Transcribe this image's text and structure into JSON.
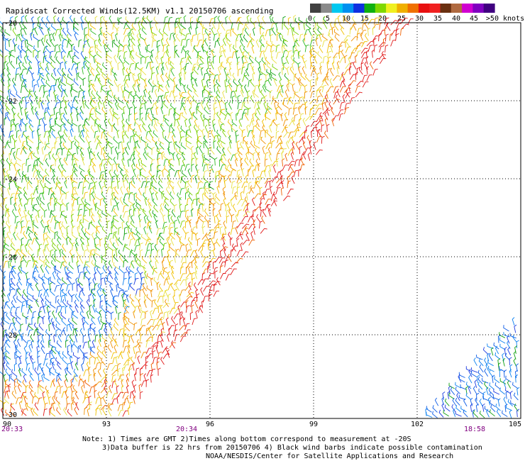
{
  "title": "Rapidscat Corrected Winds(12.5KM) v1.1 20150706 ascending",
  "legend": {
    "colors": [
      "#404040",
      "#8a8a8a",
      "#00c8f0",
      "#0090f0",
      "#1030e0",
      "#10b010",
      "#80d800",
      "#f0f020",
      "#f0b000",
      "#f07000",
      "#e81010",
      "#f02020",
      "#6a3010",
      "#b06a40",
      "#d000d0",
      "#8000c0",
      "#400080"
    ],
    "labels": [
      "0",
      "5",
      "10",
      "15",
      "20",
      "25",
      "30",
      "35",
      "40",
      "45",
      ">50 knots"
    ]
  },
  "axes": {
    "lon_labels": [
      "90",
      "93",
      "96",
      "99",
      "102",
      "105"
    ],
    "lat_labels": [
      "-20",
      "-22",
      "-24",
      "-26",
      "-28",
      "-30"
    ]
  },
  "times": [
    "20:33",
    "20:34",
    "18:58"
  ],
  "notes": {
    "line1": "Note: 1) Times are GMT 2)Times along bottom correspond to measurement at -20S",
    "line2": "3)Data buffer is 22 hrs from 20150706 4) Black wind barbs indicate possible contamination",
    "line3": "NOAA/NESDIS/Center for Satellite Applications and Research"
  }
}
